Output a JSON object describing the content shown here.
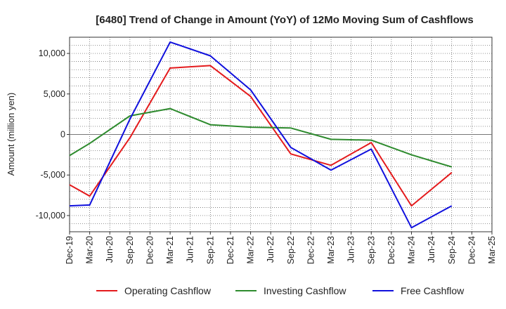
{
  "chart_data": {
    "type": "line",
    "title": "[6480]  Trend of Change in Amount (YoY) of 12Mo Moving Sum of Cashflows",
    "xlabel": "",
    "ylabel": "Amount (million yen)",
    "ylim": [
      -12000,
      12000
    ],
    "yticks": [
      10000,
      5000,
      0,
      -5000,
      -10000
    ],
    "ytick_labels": [
      "10,000",
      "5,000",
      "0",
      "-5,000",
      "-10,000"
    ],
    "grid": true,
    "legend_position": "bottom",
    "categories": [
      "Dec-19",
      "Mar-20",
      "Jun-20",
      "Sep-20",
      "Dec-20",
      "Mar-21",
      "Jun-21",
      "Sep-21",
      "Dec-21",
      "Mar-22",
      "Jun-22",
      "Sep-22",
      "Dec-22",
      "Mar-23",
      "Jun-23",
      "Sep-23",
      "Dec-23",
      "Mar-24",
      "Jun-24",
      "Sep-24",
      "Dec-24",
      "Mar-25"
    ],
    "series": [
      {
        "name": "Operating Cashflow",
        "color": "#e41a1c",
        "values": [
          -6200,
          -7600,
          null,
          -400,
          null,
          8200,
          null,
          8500,
          null,
          4700,
          null,
          -2400,
          null,
          -3800,
          null,
          -1000,
          null,
          -8800,
          null,
          -4700,
          null,
          null
        ]
      },
      {
        "name": "Investing Cashflow",
        "color": "#2e8b2e",
        "values": [
          -2600,
          -1100,
          null,
          2300,
          null,
          3200,
          null,
          1200,
          null,
          900,
          null,
          800,
          null,
          -600,
          null,
          -700,
          null,
          -2500,
          null,
          -4000,
          null,
          null
        ]
      },
      {
        "name": "Free Cashflow",
        "color": "#1010dd",
        "values": [
          -8800,
          -8700,
          null,
          1900,
          null,
          11400,
          null,
          9700,
          null,
          5500,
          null,
          -1600,
          null,
          -4400,
          null,
          -1800,
          null,
          -11500,
          null,
          -8800,
          null,
          null
        ]
      }
    ]
  }
}
